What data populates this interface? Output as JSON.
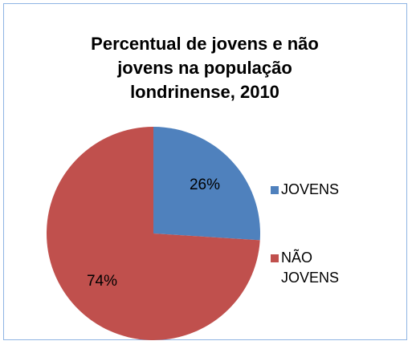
{
  "chart_data": {
    "type": "pie",
    "title": "Percentual de jovens e não jovens na população londrinense, 2010",
    "categories": [
      "JOVENS",
      "NÃO JOVENS"
    ],
    "values": [
      26,
      74
    ],
    "value_labels": [
      "26%",
      "74%"
    ],
    "colors": [
      "#4f81bd",
      "#c0504d"
    ],
    "legend": "right"
  }
}
